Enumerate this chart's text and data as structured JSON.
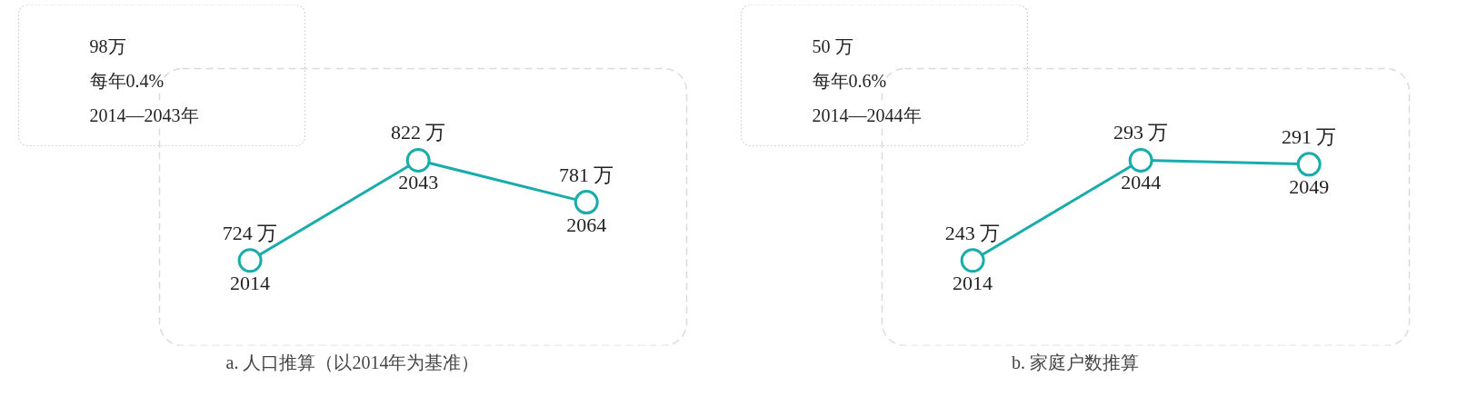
{
  "chart_data": [
    {
      "type": "line",
      "title": "a. 人口推算（以2014年为基准）",
      "annotations": [
        "98万",
        "每年0.4%",
        "2014—2043年"
      ],
      "categories": [
        "2014",
        "2043",
        "2064"
      ],
      "values": [
        724,
        822,
        781
      ],
      "value_labels": [
        "724 万",
        "822 万",
        "781 万"
      ],
      "color": "#1aabab",
      "marker": "circle",
      "tick_labels": false,
      "grid": false,
      "legend": false
    },
    {
      "type": "line",
      "title": "b. 家庭户数推算",
      "annotations": [
        "50 万",
        "每年0.6%",
        "2014—2044年"
      ],
      "categories": [
        "2014",
        "2044",
        "2049"
      ],
      "values": [
        243,
        293,
        291
      ],
      "value_labels": [
        "243 万",
        "293 万",
        "291 万"
      ],
      "color": "#1aabab",
      "marker": "circle",
      "tick_labels": false,
      "grid": false,
      "legend": false
    }
  ]
}
